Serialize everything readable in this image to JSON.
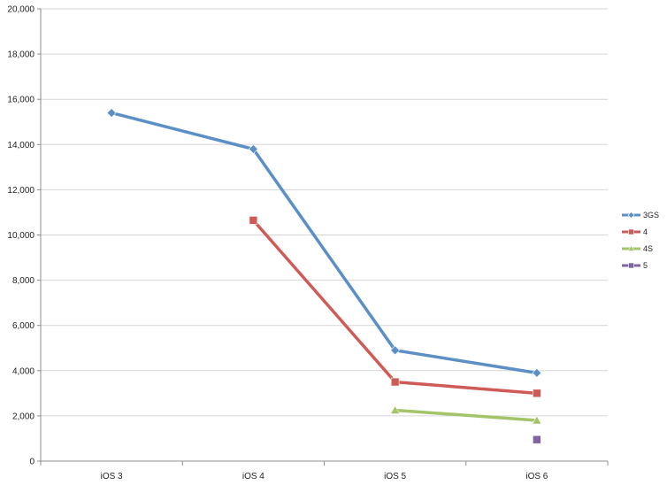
{
  "chart_data": {
    "type": "line",
    "title": "",
    "xlabel": "",
    "ylabel": "",
    "categories": [
      "iOS 3",
      "iOS 4",
      "iOS 5",
      "iOS 6"
    ],
    "ylim": [
      0,
      20000
    ],
    "yticks": [
      0,
      2000,
      4000,
      6000,
      8000,
      10000,
      12000,
      14000,
      16000,
      18000,
      20000
    ],
    "ytick_labels": [
      "0",
      "2,000",
      "4,000",
      "6,000",
      "8,000",
      "10,000",
      "12,000",
      "14,000",
      "16,000",
      "18,000",
      "20,000"
    ],
    "grid": "horizontal",
    "legend_position": "right",
    "series": [
      {
        "name": "3GS",
        "color": "#5b8fc6",
        "marker": "diamond",
        "values": [
          15400,
          13800,
          4900,
          3900
        ]
      },
      {
        "name": "4",
        "color": "#cf5b58",
        "marker": "square",
        "values": [
          null,
          10650,
          3500,
          3000
        ]
      },
      {
        "name": "4S",
        "color": "#a3c468",
        "marker": "triangle",
        "values": [
          null,
          null,
          2250,
          1800
        ]
      },
      {
        "name": "5",
        "color": "#8064a2",
        "marker": "square",
        "values": [
          null,
          null,
          null,
          950
        ]
      }
    ]
  }
}
